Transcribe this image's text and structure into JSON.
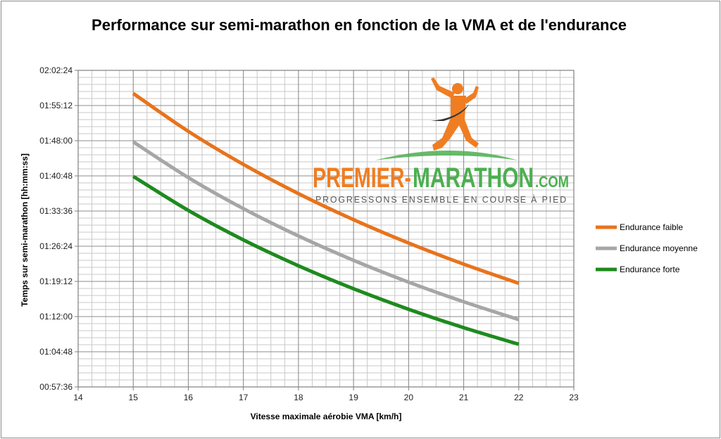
{
  "chart_data": {
    "type": "line",
    "title": "Performance sur semi-marathon en fonction de la VMA et de l'endurance",
    "xlabel": "Vitesse maximale aérobie VMA [km/h]",
    "ylabel": "Temps sur semi-marathon [hh:mm:ss]",
    "xlim": [
      14,
      23
    ],
    "ylim_seconds": [
      3456,
      7344
    ],
    "x_ticks": [
      "14",
      "15",
      "16",
      "17",
      "18",
      "19",
      "20",
      "21",
      "22",
      "23"
    ],
    "y_ticks": [
      "00:57:36",
      "01:04:48",
      "01:12:00",
      "01:19:12",
      "01:26:24",
      "01:33:36",
      "01:40:48",
      "01:48:00",
      "01:55:12",
      "02:02:24"
    ],
    "grid": true,
    "legend_position": "right",
    "x": [
      15,
      16,
      17,
      18,
      19,
      20,
      21,
      22
    ],
    "series": [
      {
        "name": "Endurance faible",
        "color": "#e8731c",
        "values_seconds": [
          7061,
          6595,
          6189,
          5830,
          5510,
          5223,
          4964,
          4729
        ]
      },
      {
        "name": "Endurance moyenne",
        "color": "#a6a6a6",
        "values_seconds": [
          6466,
          6027,
          5646,
          5310,
          5011,
          4743,
          4502,
          4283
        ]
      },
      {
        "name": "Endurance forte",
        "color": "#1e8a1e",
        "values_seconds": [
          6042,
          5624,
          5262,
          4944,
          4662,
          4410,
          4184,
          3980
        ]
      }
    ]
  },
  "watermark": {
    "brand_left": "PREMIER-",
    "brand_right": "MARATHON",
    "brand_suffix": ".COM",
    "tagline": "PROGRESSONS ENSEMBLE EN COURSE À PIED"
  }
}
